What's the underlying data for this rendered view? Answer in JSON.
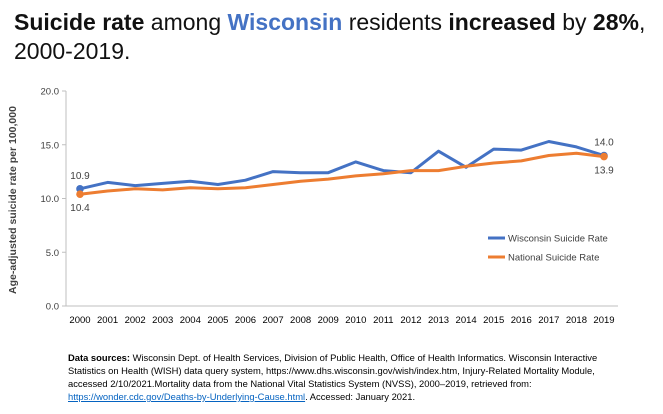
{
  "title": {
    "part1": "Suicide rate",
    "part2": " among ",
    "part3": "Wisconsin",
    "part4": " residents ",
    "part5": "increased",
    "part6": " by ",
    "part7": "28%",
    "part8": ",",
    "line2": "2000-2019."
  },
  "sources": {
    "label": "Data sources:",
    "text": " Wisconsin Dept. of Health Services, Division of Public Health, Office of Health Informatics. Wisconsin Interactive Statistics on Health (WISH) data query system, https://www.dhs.wisconsin.gov/wish/index.htm, Injury-Related Mortality Module, accessed 2/10/2021.Mortality data from the National Vital Statistics System (NVSS), 2000–2019, retrieved from: ",
    "link": "https://wonder.cdc.gov/Deaths-by-Underlying-Cause.html",
    "tail": ". Accessed: January 2021."
  },
  "chart_data": {
    "type": "line",
    "ylabel": "Age-adjusted suicide rate per 100,000",
    "xlabel": "",
    "ylim": [
      0,
      20
    ],
    "yticks": [
      "0.0",
      "5.0",
      "10.0",
      "15.0",
      "20.0"
    ],
    "grid": false,
    "legend_position": "right",
    "categories": [
      "2000",
      "2001",
      "2002",
      "2003",
      "2004",
      "2005",
      "2006",
      "2007",
      "2008",
      "2009",
      "2010",
      "2011",
      "2012",
      "2013",
      "2014",
      "2015",
      "2016",
      "2017",
      "2018",
      "2019"
    ],
    "series": [
      {
        "name": "Wisconsin Suicide Rate",
        "color": "#4472C4",
        "values": [
          10.9,
          11.5,
          11.2,
          11.4,
          11.6,
          11.3,
          11.7,
          12.5,
          12.4,
          12.4,
          13.4,
          12.6,
          12.4,
          14.4,
          12.9,
          14.6,
          14.5,
          15.3,
          14.8,
          14.0
        ]
      },
      {
        "name": "National Suicide Rate",
        "color": "#ED7D31",
        "values": [
          10.4,
          10.7,
          10.9,
          10.8,
          11.0,
          10.9,
          11.0,
          11.3,
          11.6,
          11.8,
          12.1,
          12.3,
          12.6,
          12.6,
          13.0,
          13.3,
          13.5,
          14.0,
          14.2,
          13.9
        ]
      }
    ],
    "annotations": [
      {
        "series": 0,
        "index": 0,
        "text": "10.9"
      },
      {
        "series": 1,
        "index": 0,
        "text": "10.4"
      },
      {
        "series": 0,
        "index": 19,
        "text": "14.0"
      },
      {
        "series": 1,
        "index": 19,
        "text": "13.9"
      }
    ]
  }
}
